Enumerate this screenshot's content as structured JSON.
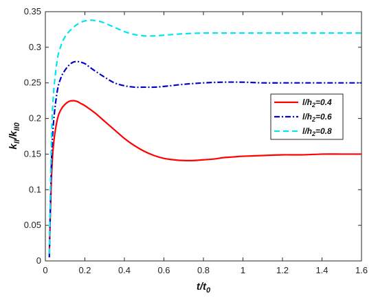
{
  "chart_data": {
    "type": "line",
    "xlabel_main": "t/t",
    "xlabel_sub": "0",
    "ylabel_num_main": "k",
    "ylabel_num_sub": "II",
    "ylabel_sep": "/",
    "ylabel_den_main": "k",
    "ylabel_den_sub": "II0",
    "xlim": [
      0,
      1.6
    ],
    "ylim": [
      0,
      0.35
    ],
    "xticks": [
      "0",
      "0.2",
      "0.4",
      "0.6",
      "0.8",
      "1",
      "1.2",
      "1.4",
      "1.6"
    ],
    "yticks": [
      "0",
      "0.05",
      "0.1",
      "0.15",
      "0.2",
      "0.25",
      "0.3",
      "0.35"
    ],
    "grid": false,
    "legend_position": "right",
    "series": [
      {
        "name_main": "l/h",
        "name_sub": "2",
        "name_tail": "=0.4",
        "color": "#ff0000",
        "style": "solid",
        "x": [
          0.02,
          0.03,
          0.04,
          0.06,
          0.08,
          0.1,
          0.12,
          0.14,
          0.16,
          0.18,
          0.2,
          0.25,
          0.3,
          0.35,
          0.4,
          0.45,
          0.5,
          0.55,
          0.6,
          0.65,
          0.7,
          0.75,
          0.8,
          0.85,
          0.9,
          0.95,
          1.0,
          1.1,
          1.2,
          1.3,
          1.4,
          1.5,
          1.6
        ],
        "y": [
          0.01,
          0.11,
          0.16,
          0.198,
          0.213,
          0.22,
          0.224,
          0.225,
          0.224,
          0.221,
          0.218,
          0.208,
          0.196,
          0.184,
          0.172,
          0.162,
          0.154,
          0.148,
          0.144,
          0.142,
          0.141,
          0.141,
          0.142,
          0.143,
          0.145,
          0.146,
          0.147,
          0.148,
          0.149,
          0.149,
          0.15,
          0.15,
          0.15
        ]
      },
      {
        "name_main": "l/h",
        "name_sub": "2",
        "name_tail": "=0.6",
        "color": "#0000cc",
        "style": "dashdot",
        "x": [
          0.02,
          0.03,
          0.04,
          0.06,
          0.08,
          0.1,
          0.12,
          0.14,
          0.16,
          0.18,
          0.2,
          0.22,
          0.25,
          0.3,
          0.35,
          0.4,
          0.45,
          0.5,
          0.55,
          0.6,
          0.7,
          0.8,
          0.9,
          1.0,
          1.1,
          1.2,
          1.3,
          1.4,
          1.5,
          1.6
        ],
        "y": [
          0.005,
          0.13,
          0.19,
          0.238,
          0.258,
          0.268,
          0.275,
          0.279,
          0.28,
          0.279,
          0.277,
          0.273,
          0.267,
          0.258,
          0.25,
          0.246,
          0.244,
          0.244,
          0.244,
          0.245,
          0.248,
          0.25,
          0.251,
          0.251,
          0.25,
          0.25,
          0.25,
          0.25,
          0.25,
          0.25
        ]
      },
      {
        "name_main": "l/h",
        "name_sub": "2",
        "name_tail": "=0.8",
        "color": "#00e5ee",
        "style": "dashed",
        "x": [
          0.02,
          0.03,
          0.04,
          0.06,
          0.08,
          0.1,
          0.12,
          0.15,
          0.18,
          0.2,
          0.22,
          0.24,
          0.26,
          0.28,
          0.3,
          0.35,
          0.4,
          0.45,
          0.5,
          0.55,
          0.6,
          0.7,
          0.8,
          0.9,
          1.0,
          1.1,
          1.2,
          1.3,
          1.4,
          1.5,
          1.6
        ],
        "y": [
          0.01,
          0.16,
          0.23,
          0.282,
          0.303,
          0.315,
          0.322,
          0.33,
          0.335,
          0.337,
          0.338,
          0.338,
          0.337,
          0.336,
          0.334,
          0.328,
          0.322,
          0.318,
          0.316,
          0.316,
          0.317,
          0.319,
          0.32,
          0.32,
          0.32,
          0.32,
          0.32,
          0.32,
          0.32,
          0.32,
          0.32
        ]
      }
    ]
  }
}
